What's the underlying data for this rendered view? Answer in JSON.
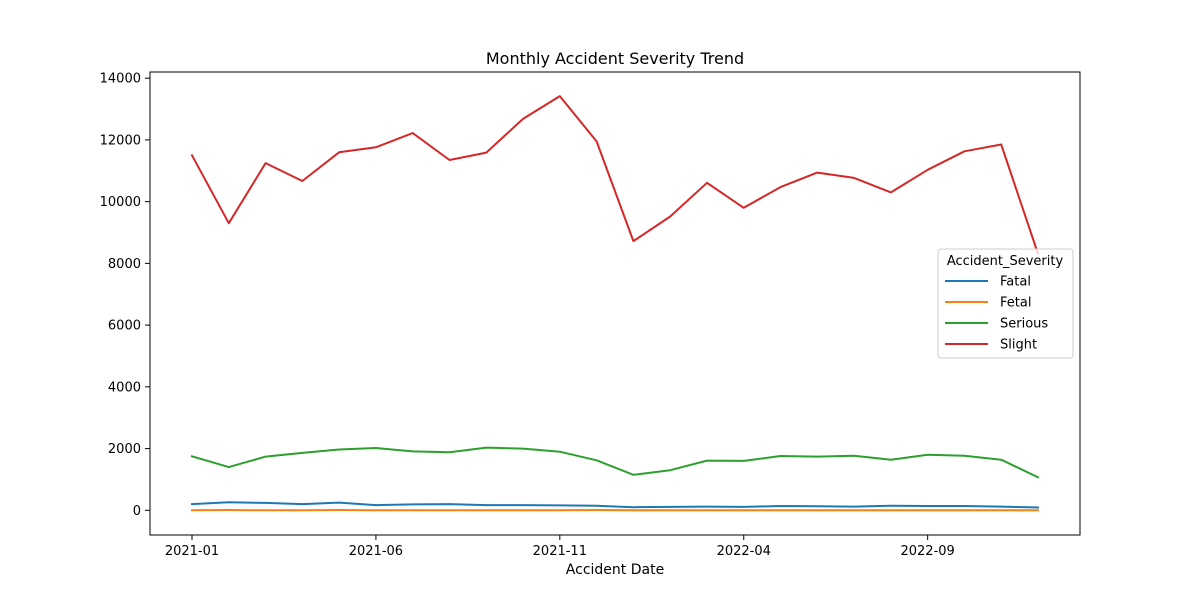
{
  "chart_data": {
    "type": "line",
    "title": "Monthly Accident Severity Trend",
    "xlabel": "Accident Date",
    "ylabel": "",
    "x": [
      "2021-01",
      "2021-02",
      "2021-03",
      "2021-04",
      "2021-05",
      "2021-06",
      "2021-07",
      "2021-08",
      "2021-09",
      "2021-10",
      "2021-11",
      "2021-12",
      "2022-01",
      "2022-02",
      "2022-03",
      "2022-04",
      "2022-05",
      "2022-06",
      "2022-07",
      "2022-08",
      "2022-09",
      "2022-10",
      "2022-11",
      "2022-12"
    ],
    "xticks": [
      "2021-01",
      "2021-06",
      "2021-11",
      "2022-04",
      "2022-09"
    ],
    "ylim": [
      -800,
      14200
    ],
    "yticks": [
      0,
      2000,
      4000,
      6000,
      8000,
      10000,
      12000,
      14000
    ],
    "grid": false,
    "legend": {
      "title": "Accident_Severity",
      "placement": "center-right"
    },
    "series": [
      {
        "name": "Fatal",
        "color": "#1f77b4",
        "values": [
          200,
          260,
          240,
          200,
          250,
          170,
          190,
          200,
          170,
          170,
          160,
          150,
          100,
          110,
          120,
          110,
          140,
          130,
          120,
          150,
          140,
          140,
          120,
          90
        ]
      },
      {
        "name": "Fetal",
        "color": "#ff7f0e",
        "values": [
          0,
          10,
          0,
          0,
          10,
          0,
          0,
          0,
          0,
          0,
          0,
          10,
          0,
          0,
          0,
          0,
          0,
          0,
          0,
          0,
          0,
          0,
          0,
          0
        ]
      },
      {
        "name": "Serious",
        "color": "#2ca02c",
        "values": [
          1750,
          1400,
          1740,
          1860,
          1970,
          2020,
          1910,
          1880,
          2030,
          2000,
          1900,
          1620,
          1150,
          1300,
          1610,
          1600,
          1760,
          1740,
          1770,
          1640,
          1800,
          1770,
          1640,
          1070
        ]
      },
      {
        "name": "Slight",
        "color": "#d62728",
        "values": [
          11500,
          9300,
          11250,
          10670,
          11600,
          11760,
          12220,
          11350,
          11590,
          12680,
          13420,
          11950,
          8720,
          9520,
          10610,
          9800,
          10470,
          10940,
          10770,
          10300,
          11030,
          11630,
          11850,
          8310
        ]
      }
    ]
  }
}
